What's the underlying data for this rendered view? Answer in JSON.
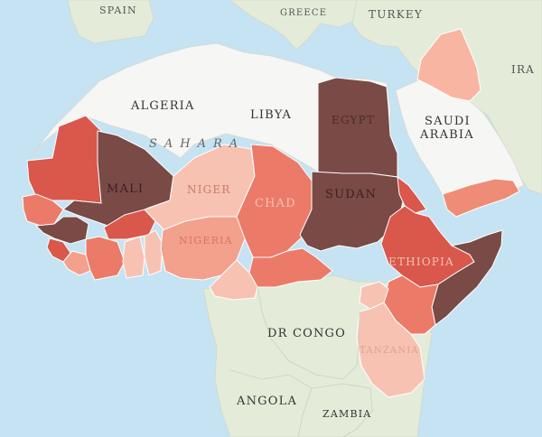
{
  "map": {
    "labels": {
      "spain": "SPAIN",
      "greece": "GREECE",
      "turkey": "TURKEY",
      "iran": "IRA",
      "algeria": "ALGERIA",
      "libya": "LIBYA",
      "egypt": "EGYPT",
      "saudi_line1": "SAUDI",
      "saudi_line2": "ARABIA",
      "sahara": "SAHARA",
      "mali": "MALI",
      "niger": "NIGER",
      "chad": "CHAD",
      "sudan": "SUDAN",
      "nigeria": "NIGERIA",
      "ethiopia": "ETHIOPIA",
      "dr_congo": "DR CONGO",
      "tanzania": "TANZANIA",
      "angola": "ANGOLA",
      "zambia": "ZAMBIA"
    },
    "colors": {
      "ocean": "#c5e3f2",
      "land": "#e4ecd9",
      "land_north": "#f6f6f4",
      "darkest": "#7a4a46",
      "dark_red": "#d9544a",
      "medium_red": "#ec7a68",
      "salmon": "#f3a08c",
      "light_salmon": "#f8c2b2"
    }
  }
}
